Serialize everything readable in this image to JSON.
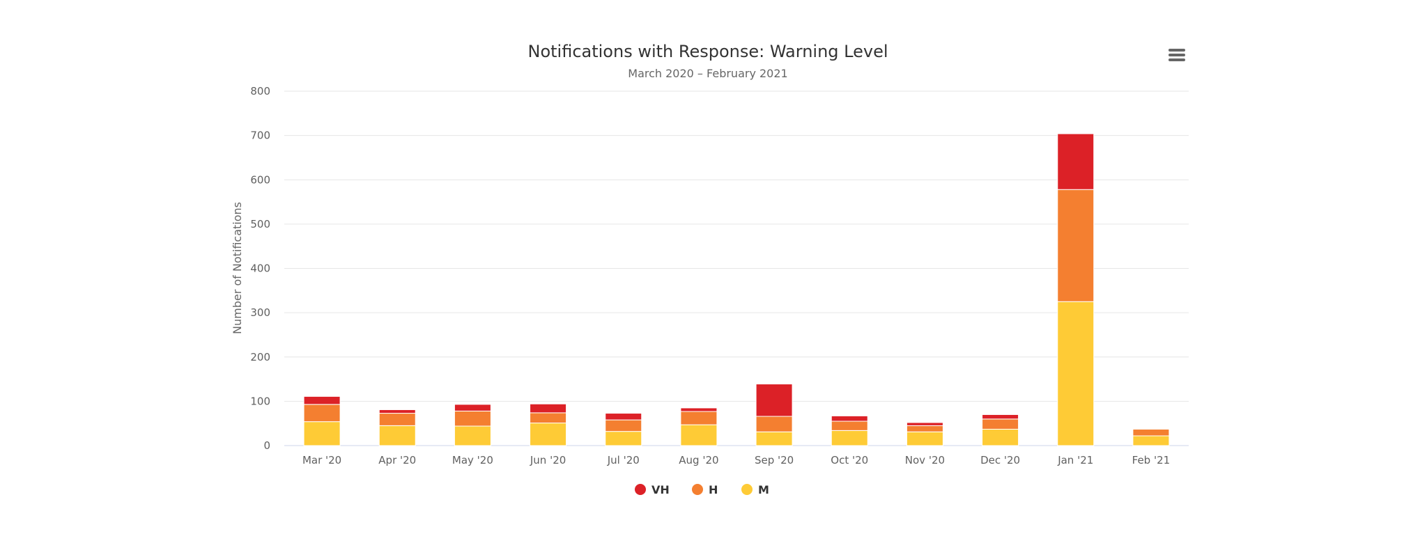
{
  "chart_data": {
    "type": "bar",
    "stacked": true,
    "title": "Notifications with Response: Warning Level",
    "subtitle": "March 2020 – February 2021",
    "ylabel": "Number of Notifications",
    "xlabel": "",
    "ylim": [
      0,
      800
    ],
    "yticks": [
      0,
      100,
      200,
      300,
      400,
      500,
      600,
      700,
      800
    ],
    "grid": true,
    "legend_position": "bottom-center",
    "categories": [
      "Mar '20",
      "Apr '20",
      "May '20",
      "Jun '20",
      "Jul '20",
      "Aug '20",
      "Sep '20",
      "Oct '20",
      "Nov '20",
      "Dec '20",
      "Jan '21",
      "Feb '21"
    ],
    "series": [
      {
        "name": "VH",
        "color": "#dc2127",
        "values": [
          18,
          8,
          15,
          20,
          15,
          8,
          73,
          12,
          7,
          10,
          126,
          0
        ]
      },
      {
        "name": "H",
        "color": "#f47f30",
        "values": [
          39,
          28,
          34,
          23,
          26,
          30,
          35,
          21,
          14,
          23,
          253,
          15
        ]
      },
      {
        "name": "M",
        "color": "#fecb36",
        "values": [
          54,
          45,
          44,
          51,
          32,
          47,
          31,
          34,
          31,
          37,
          325,
          22
        ]
      }
    ]
  },
  "menu": {
    "icon": "hamburger-menu-icon"
  }
}
